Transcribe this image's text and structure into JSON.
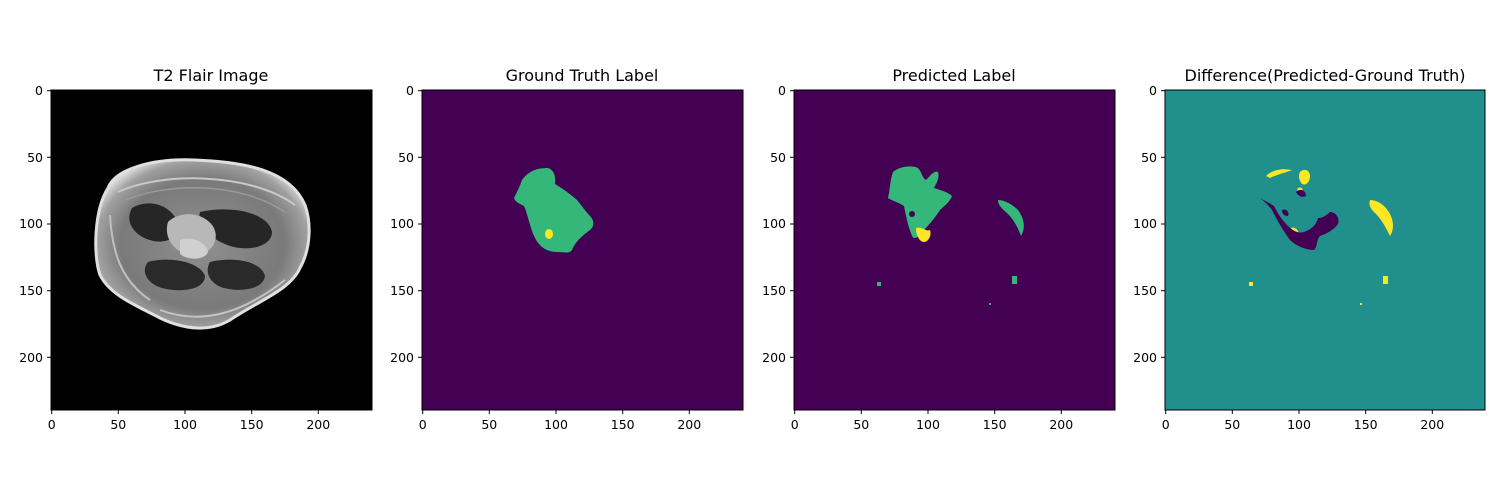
{
  "panels": [
    {
      "title": "T2 Flair Image",
      "image": "axial FLAIR MRI brain slice, grayscale on black background",
      "xticks": [
        "0",
        "50",
        "100",
        "150",
        "200"
      ],
      "yticks": [
        "0",
        "50",
        "100",
        "150",
        "200"
      ]
    },
    {
      "title": "Ground Truth Label",
      "image": "segmentation mask: green tumor region with small yellow core on dark purple background",
      "xticks": [
        "0",
        "50",
        "100",
        "150",
        "200"
      ],
      "yticks": [
        "0",
        "50",
        "100",
        "150",
        "200"
      ]
    },
    {
      "title": "Predicted Label",
      "image": "segmentation mask: green tumor region with yellow core plus small false-positive islands on dark purple background",
      "xticks": [
        "0",
        "50",
        "100",
        "150",
        "200"
      ],
      "yticks": [
        "0",
        "50",
        "100",
        "150",
        "200"
      ]
    },
    {
      "title": "Difference(Predicted-Ground Truth)",
      "image": "difference map: teal background, yellow = over-predicted, dark purple = under-predicted",
      "xticks": [
        "0",
        "50",
        "100",
        "150",
        "200"
      ],
      "yticks": [
        "0",
        "50",
        "100",
        "150",
        "200"
      ]
    }
  ],
  "colors": {
    "viridis_low": "#440154",
    "viridis_mid": "#21908d",
    "viridis_high": "#35b779",
    "viridis_max": "#fde725",
    "mri_background": "#000000"
  }
}
